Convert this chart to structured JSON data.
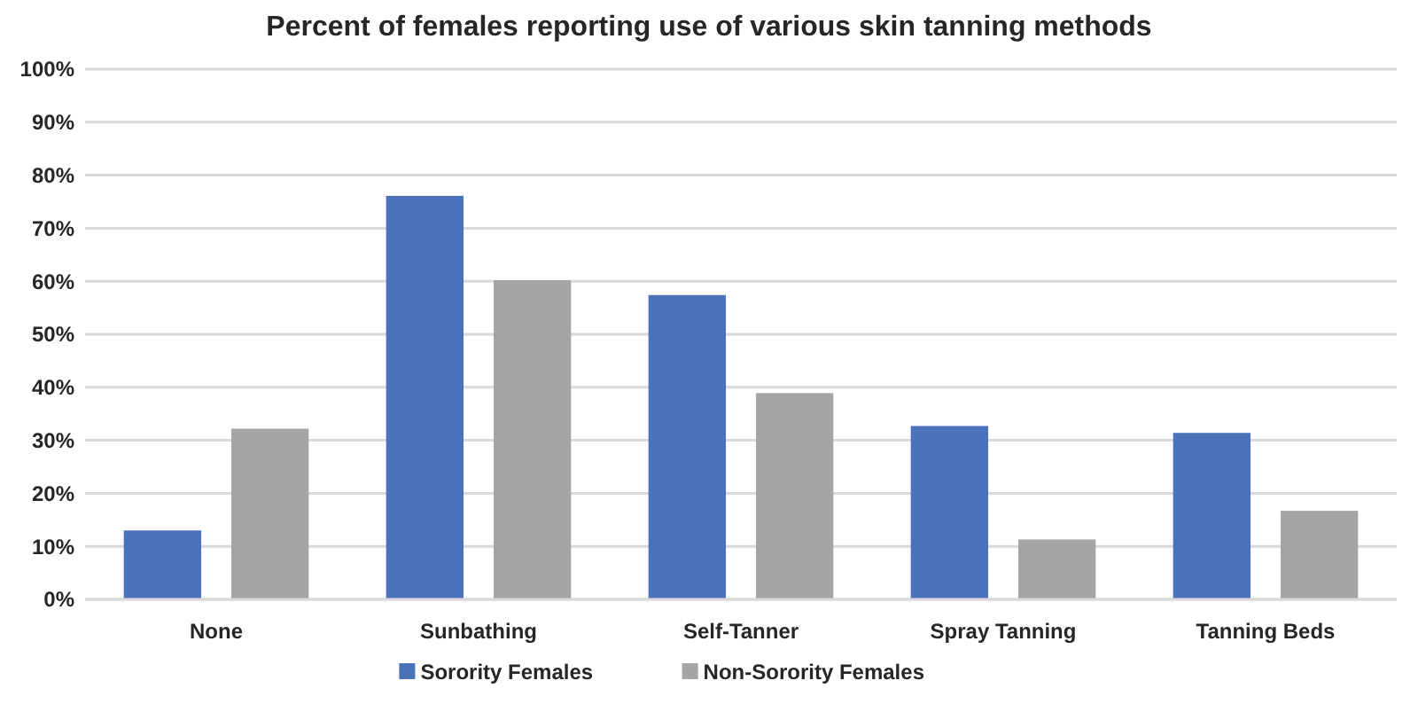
{
  "chart_data": {
    "type": "bar",
    "title": "Percent of females reporting use of various skin tanning methods",
    "categories": [
      "None",
      "Sunbathing",
      "Self-Tanner",
      "Spray Tanning",
      "Tanning Beds"
    ],
    "series": [
      {
        "name": "Sorority Females",
        "color": "#4a72b8",
        "values": [
          13,
          76.1,
          57.4,
          32.7,
          31.4
        ]
      },
      {
        "name": "Non-Sorority Females",
        "color": "#a5a5a5",
        "values": [
          32.2,
          60.2,
          38.9,
          11.3,
          16.7
        ]
      }
    ],
    "ylim": [
      0,
      100
    ],
    "yticks": [
      {
        "value": 0,
        "label": "0%"
      },
      {
        "value": 10,
        "label": "10%"
      },
      {
        "value": 20,
        "label": "20%"
      },
      {
        "value": 30,
        "label": "30%"
      },
      {
        "value": 40,
        "label": "40%"
      },
      {
        "value": 50,
        "label": "50%"
      },
      {
        "value": 60,
        "label": "60%"
      },
      {
        "value": 70,
        "label": "70%"
      },
      {
        "value": 80,
        "label": "80%"
      },
      {
        "value": 90,
        "label": "90%"
      },
      {
        "value": 100,
        "label": "100%"
      }
    ],
    "grid": "y",
    "legend": "bottom"
  }
}
